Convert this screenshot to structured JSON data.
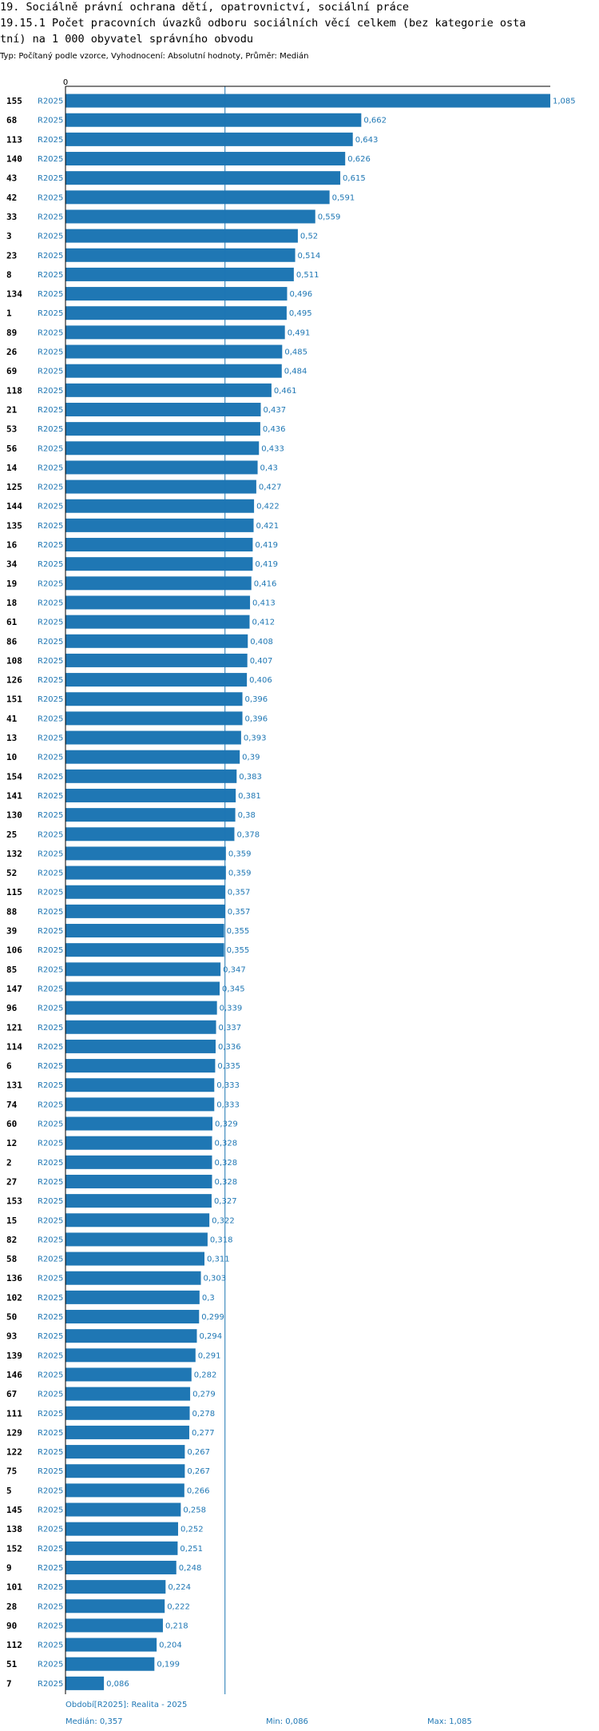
{
  "header": {
    "line1": "19. Sociálně právní ochrana dětí, opatrovnictví, sociální práce",
    "line2": "19.15.1 Počet pracovních úvazků odboru sociálních věcí celkem (bez kategorie osta",
    "line3": "tní) na 1 000 obyvatel správního obvodu",
    "subtitle": "Typ: Počítaný podle vzorce, Vyhodnocení: Absolutní hodnoty, Průměr: Medián"
  },
  "footer": {
    "period": "Období[R2025]: Realita - 2025",
    "median": "Medián: 0,357",
    "min": "Min: 0,086",
    "max": "Max: 1,085"
  },
  "colors": {
    "bar": "#1f77b4",
    "median_line": "#1f77b4",
    "axis": "#000000",
    "value_label": "#1f77b4",
    "row_label": "#000000"
  },
  "chart_data": {
    "type": "bar",
    "orientation": "horizontal",
    "series_label": "R2025",
    "axis_zero_label": "0",
    "median": 0.357,
    "xlim": [
      0,
      1.085
    ],
    "categories": [
      "155",
      "68",
      "113",
      "140",
      "43",
      "42",
      "33",
      "3",
      "23",
      "8",
      "134",
      "1",
      "89",
      "26",
      "69",
      "118",
      "21",
      "53",
      "56",
      "14",
      "125",
      "144",
      "135",
      "16",
      "34",
      "19",
      "18",
      "61",
      "86",
      "108",
      "126",
      "151",
      "41",
      "13",
      "10",
      "154",
      "141",
      "130",
      "25",
      "132",
      "52",
      "115",
      "88",
      "39",
      "106",
      "85",
      "147",
      "96",
      "121",
      "114",
      "6",
      "131",
      "74",
      "60",
      "12",
      "2",
      "27",
      "153",
      "15",
      "82",
      "58",
      "136",
      "102",
      "50",
      "93",
      "139",
      "146",
      "67",
      "111",
      "129",
      "122",
      "75",
      "5",
      "145",
      "138",
      "152",
      "9",
      "101",
      "28",
      "90",
      "112",
      "51",
      "7"
    ],
    "values": [
      1.085,
      0.662,
      0.643,
      0.626,
      0.615,
      0.591,
      0.559,
      0.52,
      0.514,
      0.511,
      0.496,
      0.495,
      0.491,
      0.485,
      0.484,
      0.461,
      0.437,
      0.436,
      0.433,
      0.43,
      0.427,
      0.422,
      0.421,
      0.419,
      0.419,
      0.416,
      0.413,
      0.412,
      0.408,
      0.407,
      0.406,
      0.396,
      0.396,
      0.393,
      0.39,
      0.383,
      0.381,
      0.38,
      0.378,
      0.359,
      0.359,
      0.357,
      0.357,
      0.355,
      0.355,
      0.347,
      0.345,
      0.339,
      0.337,
      0.336,
      0.335,
      0.333,
      0.333,
      0.329,
      0.328,
      0.328,
      0.328,
      0.327,
      0.322,
      0.318,
      0.311,
      0.303,
      0.3,
      0.299,
      0.294,
      0.291,
      0.282,
      0.279,
      0.278,
      0.277,
      0.267,
      0.267,
      0.266,
      0.258,
      0.252,
      0.251,
      0.248,
      0.224,
      0.222,
      0.218,
      0.204,
      0.199,
      0.086
    ],
    "value_labels": [
      "1,085",
      "0,662",
      "0,643",
      "0,626",
      "0,615",
      "0,591",
      "0,559",
      "0,52",
      "0,514",
      "0,511",
      "0,496",
      "0,495",
      "0,491",
      "0,485",
      "0,484",
      "0,461",
      "0,437",
      "0,436",
      "0,433",
      "0,43",
      "0,427",
      "0,422",
      "0,421",
      "0,419",
      "0,419",
      "0,416",
      "0,413",
      "0,412",
      "0,408",
      "0,407",
      "0,406",
      "0,396",
      "0,396",
      "0,393",
      "0,39",
      "0,383",
      "0,381",
      "0,38",
      "0,378",
      "0,359",
      "0,359",
      "0,357",
      "0,357",
      "0,355",
      "0,355",
      "0,347",
      "0,345",
      "0,339",
      "0,337",
      "0,336",
      "0,335",
      "0,333",
      "0,333",
      "0,329",
      "0,328",
      "0,328",
      "0,328",
      "0,327",
      "0,322",
      "0,318",
      "0,311",
      "0,303",
      "0,3",
      "0,299",
      "0,294",
      "0,291",
      "0,282",
      "0,279",
      "0,278",
      "0,277",
      "0,267",
      "0,267",
      "0,266",
      "0,258",
      "0,252",
      "0,251",
      "0,248",
      "0,224",
      "0,222",
      "0,218",
      "0,204",
      "0,199",
      "0,086"
    ]
  }
}
